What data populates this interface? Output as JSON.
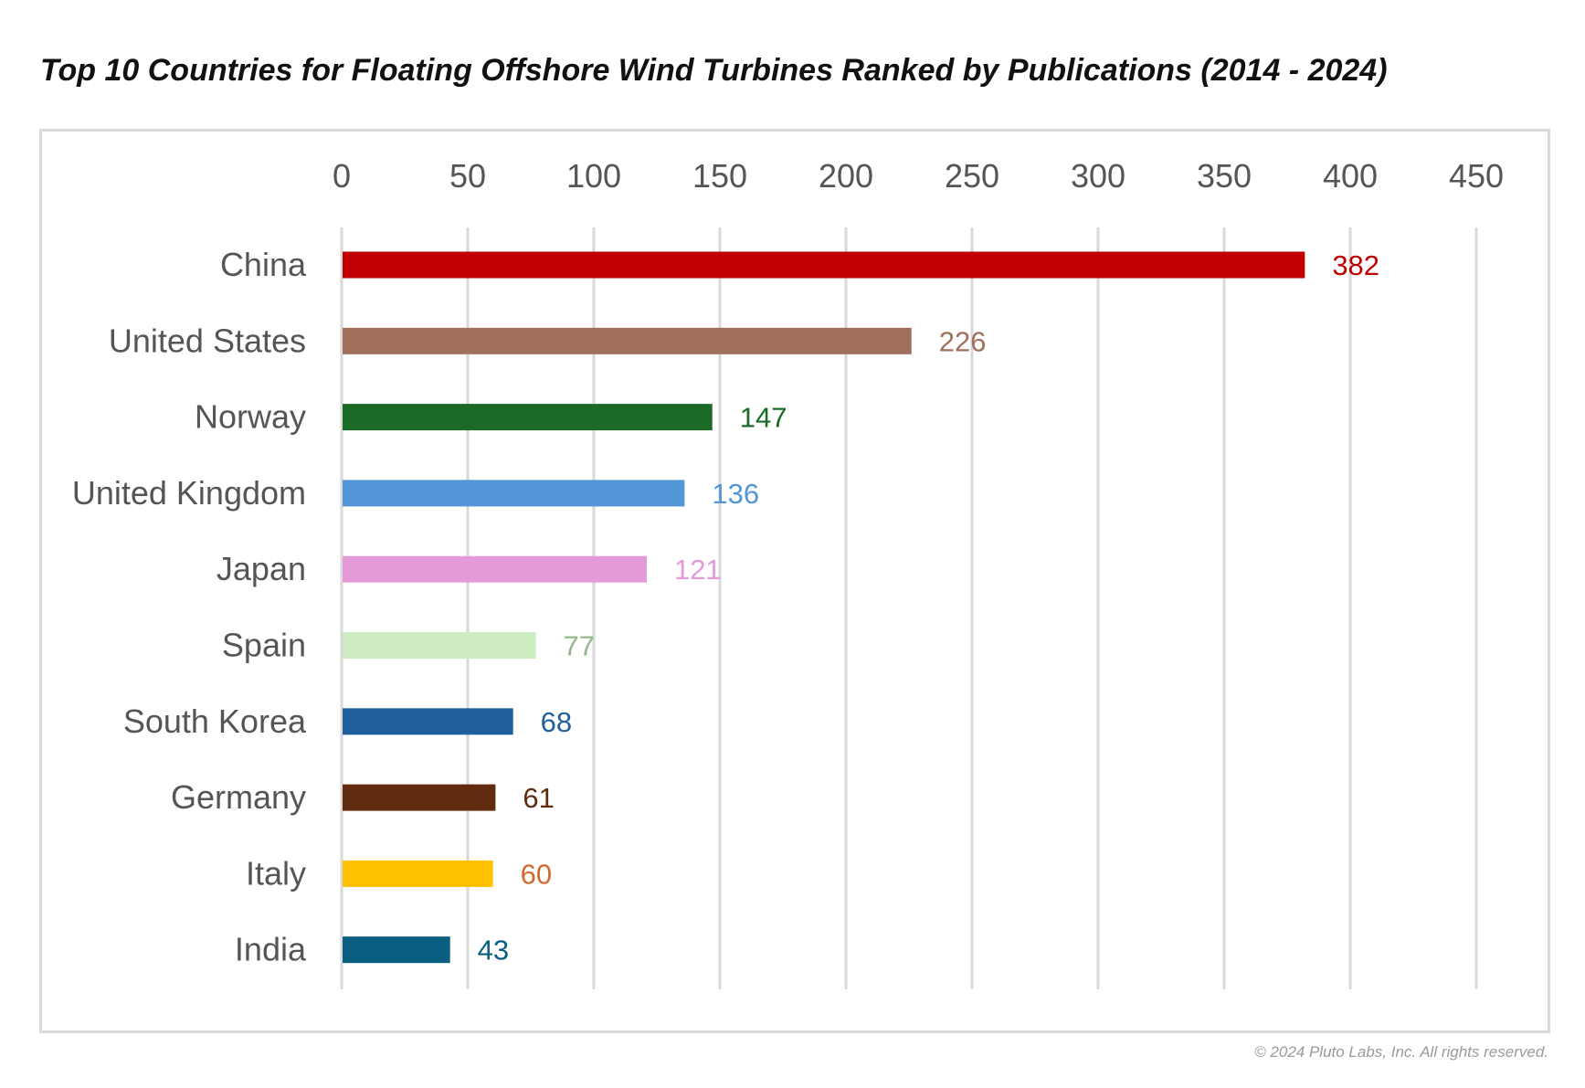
{
  "title": "Top 10 Countries for Floating Offshore Wind Turbines Ranked by Publications (2014 - 2024)",
  "copyright": "© 2024 Pluto Labs, Inc. All rights reserved.",
  "chart_data": {
    "type": "bar",
    "orientation": "horizontal",
    "title": "Top 10 Countries for Floating Offshore Wind Turbines Ranked by Publications (2014 - 2024)",
    "xlabel": "",
    "ylabel": "",
    "xlim": [
      0,
      450
    ],
    "xticks": [
      0,
      50,
      100,
      150,
      200,
      250,
      300,
      350,
      400,
      450
    ],
    "x_axis_position": "top",
    "grid": "vertical",
    "legend": "none",
    "categories": [
      "China",
      "United States",
      "Norway",
      "United Kingdom",
      "Japan",
      "Spain",
      "South Korea",
      "Germany",
      "Italy",
      "India"
    ],
    "values": [
      382,
      226,
      147,
      136,
      121,
      77,
      68,
      61,
      60,
      43
    ],
    "bar_colors": [
      "#c00000",
      "#a0705c",
      "#1b6b27",
      "#5296d8",
      "#e39ad9",
      "#cdebc0",
      "#21609c",
      "#612b0f",
      "#ffc000",
      "#0a5f80"
    ],
    "label_colors": [
      "#c00000",
      "#a0705c",
      "#1b6b27",
      "#5296d8",
      "#e39ad9",
      "#93b98a",
      "#21609c",
      "#612b0f",
      "#d2692e",
      "#0a5f80"
    ]
  }
}
